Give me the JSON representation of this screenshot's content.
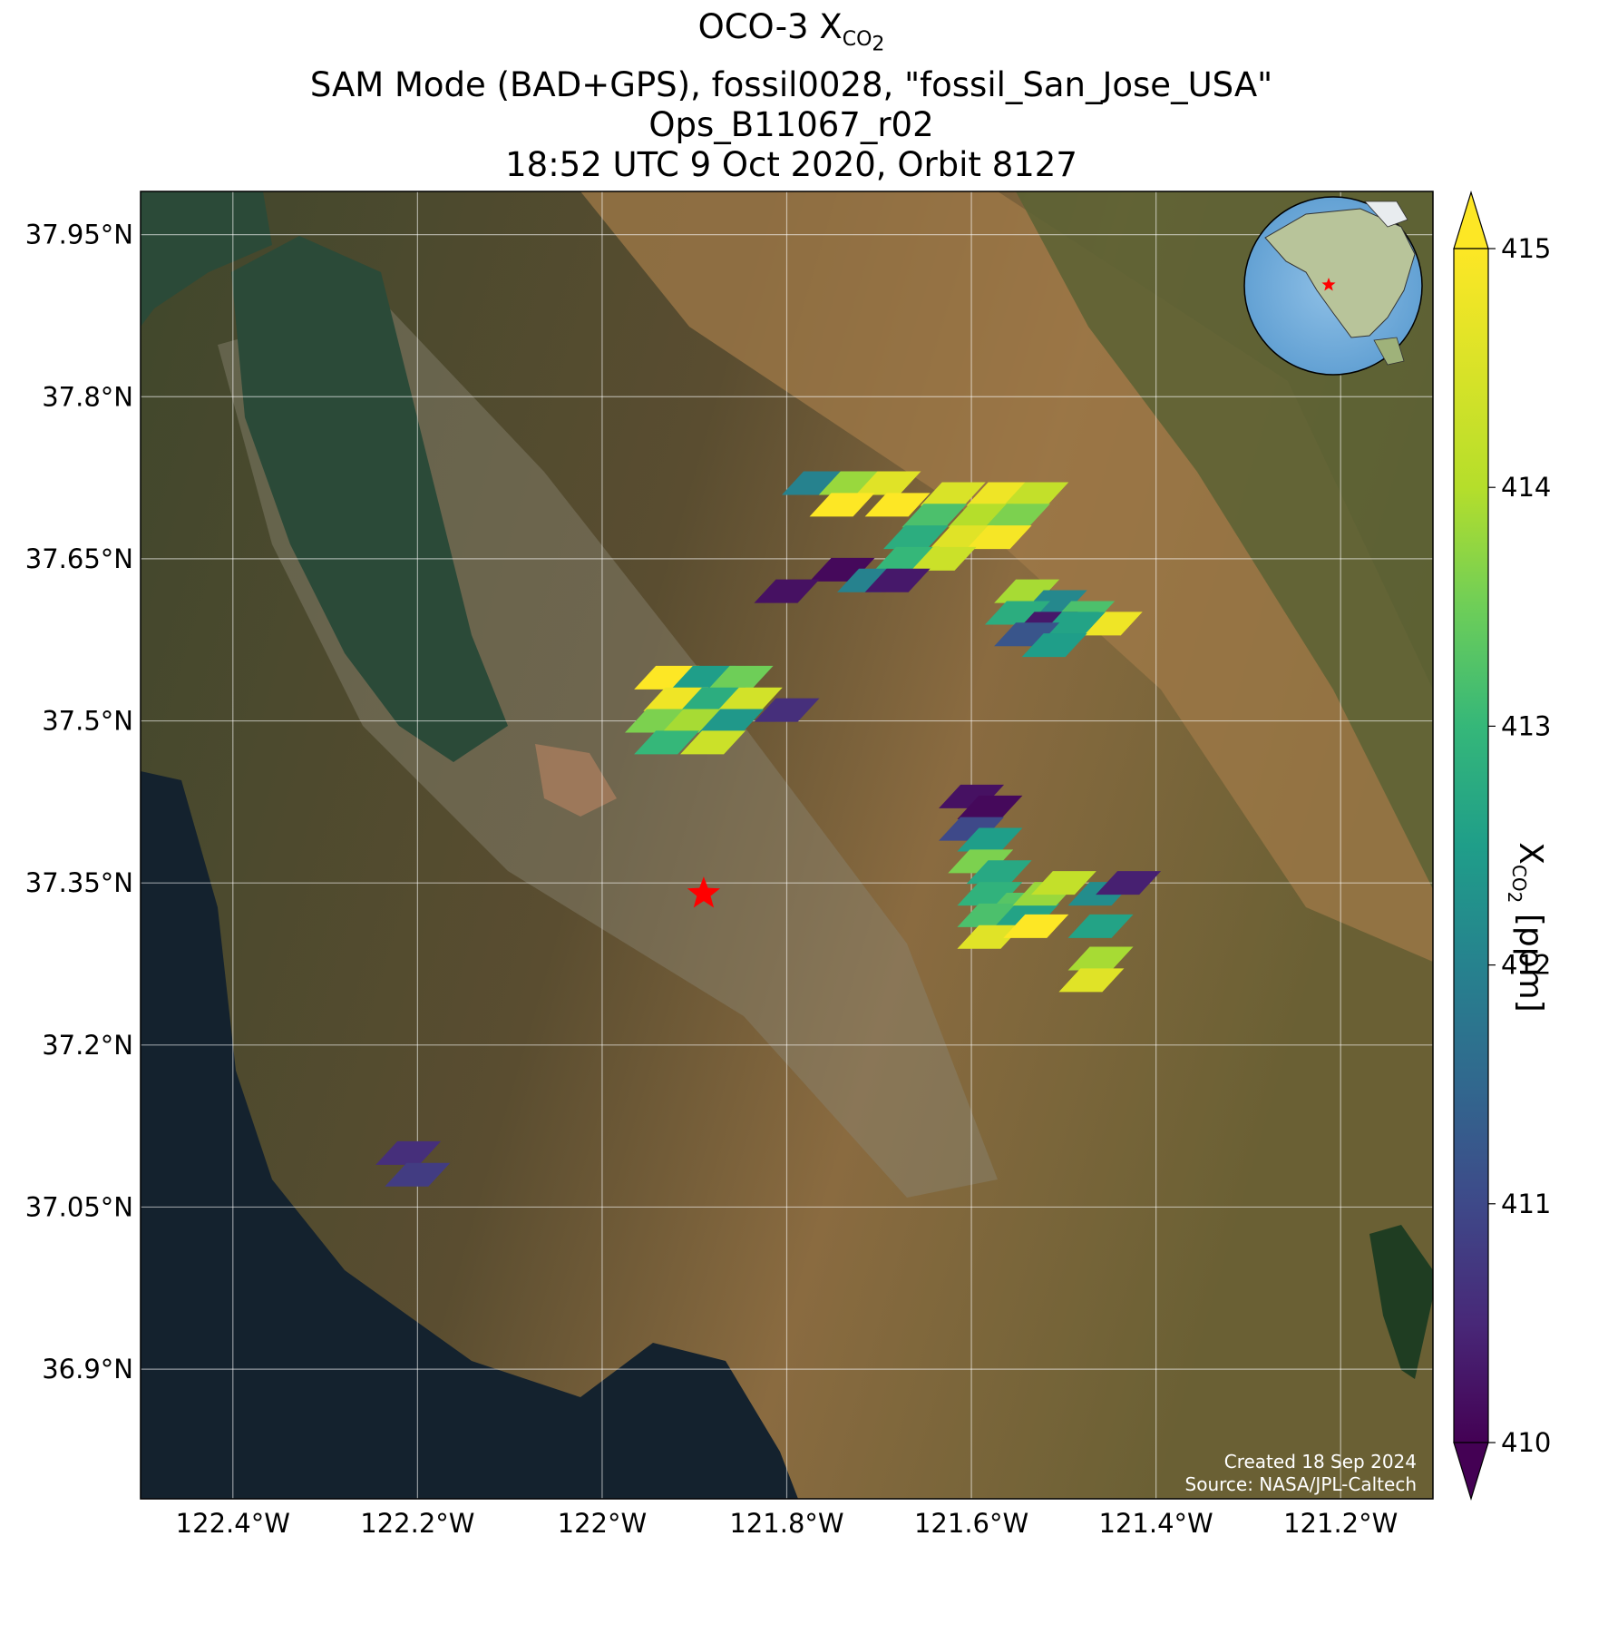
{
  "title": {
    "line1_prefix": "OCO-3 X",
    "line1_sub": "CO",
    "line1_sub2": "2",
    "line2": "SAM Mode (BAD+GPS), fossil0028, \"fossil_San_Jose_USA\"",
    "line3": "Ops_B11067_r02",
    "line4": "18:52 UTC 9 Oct 2020, Orbit 8127"
  },
  "axes": {
    "lat_ticks": [
      "37.95°N",
      "37.8°N",
      "37.65°N",
      "37.5°N",
      "37.35°N",
      "37.2°N",
      "37.05°N",
      "36.9°N"
    ],
    "lon_ticks": [
      "122.4°W",
      "122.2°W",
      "122°W",
      "121.8°W",
      "121.6°W",
      "121.4°W",
      "121.2°W"
    ],
    "lat_range": [
      36.78,
      37.99
    ],
    "lon_range": [
      -122.5,
      -121.1
    ]
  },
  "colorbar": {
    "label_prefix": "X",
    "label_sub": "CO",
    "label_sub2": "2",
    "label_suffix": " [ppm]",
    "ticks": [
      "410",
      "411",
      "412",
      "413",
      "414",
      "415"
    ],
    "range": [
      410,
      415
    ],
    "colormap": "viridis",
    "extend": "both"
  },
  "credits": {
    "created": "Created 18 Sep 2024",
    "source": "Source: NASA/JPL-Caltech"
  },
  "target": {
    "name": "San Jose",
    "lat": 37.34,
    "lon": -121.89,
    "marker": "red-star"
  },
  "inset": {
    "type": "globe",
    "region": "North America",
    "marker": "red-star"
  },
  "chart_data": {
    "type": "heatmap",
    "variable": "XCO2",
    "units": "ppm",
    "soundings": [
      {
        "lon": -121.77,
        "lat": 37.72,
        "value": 412.0
      },
      {
        "lon": -121.73,
        "lat": 37.72,
        "value": 413.8
      },
      {
        "lon": -121.69,
        "lat": 37.72,
        "value": 414.6
      },
      {
        "lon": -121.74,
        "lat": 37.7,
        "value": 415.2
      },
      {
        "lon": -121.68,
        "lat": 37.7,
        "value": 415.2
      },
      {
        "lon": -121.62,
        "lat": 37.71,
        "value": 414.5
      },
      {
        "lon": -121.57,
        "lat": 37.71,
        "value": 414.8
      },
      {
        "lon": -121.53,
        "lat": 37.71,
        "value": 414.2
      },
      {
        "lon": -121.64,
        "lat": 37.69,
        "value": 413.2
      },
      {
        "lon": -121.59,
        "lat": 37.69,
        "value": 414.0
      },
      {
        "lon": -121.55,
        "lat": 37.69,
        "value": 413.6
      },
      {
        "lon": -121.66,
        "lat": 37.67,
        "value": 412.8
      },
      {
        "lon": -121.61,
        "lat": 37.67,
        "value": 414.6
      },
      {
        "lon": -121.57,
        "lat": 37.67,
        "value": 414.9
      },
      {
        "lon": -121.67,
        "lat": 37.65,
        "value": 413.0
      },
      {
        "lon": -121.63,
        "lat": 37.65,
        "value": 414.3
      },
      {
        "lon": -121.74,
        "lat": 37.64,
        "value": 410.1
      },
      {
        "lon": -121.71,
        "lat": 37.63,
        "value": 412.0
      },
      {
        "lon": -121.68,
        "lat": 37.63,
        "value": 410.3
      },
      {
        "lon": -121.8,
        "lat": 37.62,
        "value": 410.2
      },
      {
        "lon": -121.54,
        "lat": 37.62,
        "value": 413.9
      },
      {
        "lon": -121.51,
        "lat": 37.61,
        "value": 412.1
      },
      {
        "lon": -121.48,
        "lat": 37.6,
        "value": 413.2
      },
      {
        "lon": -121.45,
        "lat": 37.59,
        "value": 414.8
      },
      {
        "lon": -121.55,
        "lat": 37.6,
        "value": 412.8
      },
      {
        "lon": -121.52,
        "lat": 37.59,
        "value": 410.3
      },
      {
        "lon": -121.49,
        "lat": 37.59,
        "value": 412.6
      },
      {
        "lon": -121.54,
        "lat": 37.58,
        "value": 411.2
      },
      {
        "lon": -121.51,
        "lat": 37.57,
        "value": 412.5
      },
      {
        "lon": -121.93,
        "lat": 37.54,
        "value": 415.1
      },
      {
        "lon": -121.89,
        "lat": 37.54,
        "value": 412.5
      },
      {
        "lon": -121.85,
        "lat": 37.54,
        "value": 413.5
      },
      {
        "lon": -121.92,
        "lat": 37.52,
        "value": 414.8
      },
      {
        "lon": -121.88,
        "lat": 37.52,
        "value": 412.8
      },
      {
        "lon": -121.84,
        "lat": 37.52,
        "value": 414.4
      },
      {
        "lon": -121.94,
        "lat": 37.5,
        "value": 413.6
      },
      {
        "lon": -121.9,
        "lat": 37.5,
        "value": 413.9
      },
      {
        "lon": -121.86,
        "lat": 37.5,
        "value": 412.4
      },
      {
        "lon": -121.93,
        "lat": 37.48,
        "value": 413.0
      },
      {
        "lon": -121.88,
        "lat": 37.48,
        "value": 414.3
      },
      {
        "lon": -121.8,
        "lat": 37.51,
        "value": 410.6
      },
      {
        "lon": -121.6,
        "lat": 37.43,
        "value": 410.2
      },
      {
        "lon": -121.58,
        "lat": 37.42,
        "value": 410.1
      },
      {
        "lon": -121.6,
        "lat": 37.4,
        "value": 411.0
      },
      {
        "lon": -121.58,
        "lat": 37.39,
        "value": 412.5
      },
      {
        "lon": -121.59,
        "lat": 37.37,
        "value": 413.6
      },
      {
        "lon": -121.57,
        "lat": 37.36,
        "value": 412.7
      },
      {
        "lon": -121.58,
        "lat": 37.34,
        "value": 412.9
      },
      {
        "lon": -121.55,
        "lat": 37.33,
        "value": 413.3
      },
      {
        "lon": -121.58,
        "lat": 37.32,
        "value": 413.2
      },
      {
        "lon": -121.54,
        "lat": 37.32,
        "value": 412.6
      },
      {
        "lon": -121.58,
        "lat": 37.3,
        "value": 414.6
      },
      {
        "lon": -121.52,
        "lat": 37.34,
        "value": 413.8
      },
      {
        "lon": -121.5,
        "lat": 37.35,
        "value": 414.2
      },
      {
        "lon": -121.53,
        "lat": 37.31,
        "value": 415.2
      },
      {
        "lon": -121.46,
        "lat": 37.34,
        "value": 412.2
      },
      {
        "lon": -121.43,
        "lat": 37.35,
        "value": 410.4
      },
      {
        "lon": -121.46,
        "lat": 37.31,
        "value": 412.6
      },
      {
        "lon": -121.46,
        "lat": 37.28,
        "value": 413.9
      },
      {
        "lon": -121.47,
        "lat": 37.26,
        "value": 414.6
      },
      {
        "lon": -122.21,
        "lat": 37.1,
        "value": 410.6
      },
      {
        "lon": -122.2,
        "lat": 37.08,
        "value": 410.8
      }
    ]
  }
}
